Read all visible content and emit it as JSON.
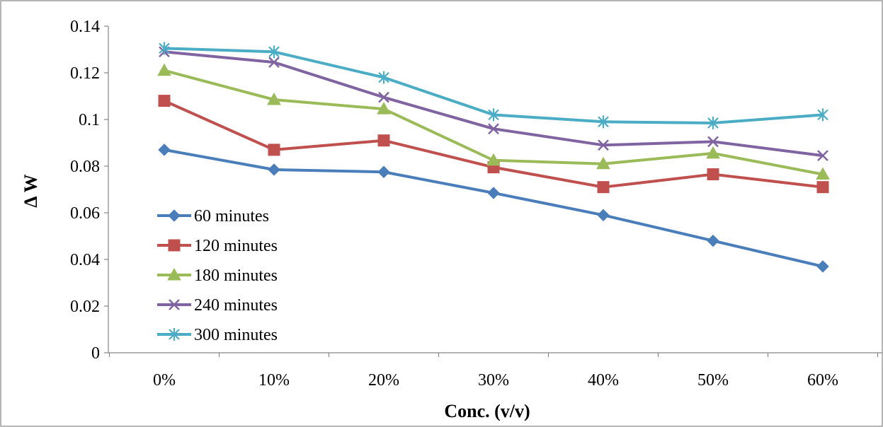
{
  "chart_data": {
    "type": "line",
    "title": "",
    "xlabel": "Conc. (v/v)",
    "ylabel": "Δ W",
    "categories": [
      "0%",
      "10%",
      "20%",
      "30%",
      "40%",
      "50%",
      "60%"
    ],
    "ylim": [
      0,
      0.14
    ],
    "yticks": [
      "0",
      "0.02",
      "0.04",
      "0.06",
      "0.08",
      "0.1",
      "0.12",
      "0.14"
    ],
    "ytick_values": [
      0,
      0.02,
      0.04,
      0.06,
      0.08,
      0.1,
      0.12,
      0.14
    ],
    "grid": false,
    "legend_position": "left-bottom",
    "series": [
      {
        "name": "60 minutes",
        "color": "#4a7ebb",
        "marker": "diamond",
        "values": [
          0.087,
          0.0785,
          0.0775,
          0.0685,
          0.059,
          0.048,
          0.037
        ]
      },
      {
        "name": "120 minutes",
        "color": "#c0504d",
        "marker": "square",
        "values": [
          0.108,
          0.087,
          0.091,
          0.0795,
          0.071,
          0.0765,
          0.071
        ]
      },
      {
        "name": "180 minutes",
        "color": "#9bbb59",
        "marker": "triangle",
        "values": [
          0.121,
          0.1085,
          0.1045,
          0.0825,
          0.081,
          0.0855,
          0.0765
        ]
      },
      {
        "name": "240 minutes",
        "color": "#8064a2",
        "marker": "x",
        "values": [
          0.129,
          0.1245,
          0.1095,
          0.096,
          0.089,
          0.0905,
          0.0845
        ]
      },
      {
        "name": "300 minutes",
        "color": "#4bacc6",
        "marker": "star",
        "values": [
          0.1305,
          0.129,
          0.118,
          0.102,
          0.099,
          0.0985,
          0.102
        ]
      }
    ]
  }
}
